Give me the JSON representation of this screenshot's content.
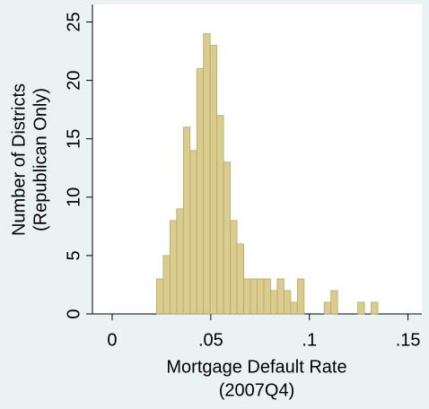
{
  "chart_data": {
    "type": "histogram",
    "bins": [
      0.0225,
      0.0259,
      0.0293,
      0.0327,
      0.0361,
      0.0395,
      0.0429,
      0.0463,
      0.0497,
      0.0531,
      0.0565,
      0.0599,
      0.0633,
      0.0667,
      0.0701,
      0.0735,
      0.0769,
      0.0803,
      0.0837,
      0.0871,
      0.0905,
      0.0939,
      0.0973,
      0.1007,
      0.1041,
      0.1075,
      0.1109,
      0.1143,
      0.1177,
      0.1211,
      0.1245,
      0.1279,
      0.1313,
      0.1347
    ],
    "values": [
      3,
      5,
      8,
      9,
      16,
      14,
      21,
      24,
      23,
      17,
      13,
      8,
      6,
      3,
      3,
      3,
      3,
      2,
      3,
      2,
      1,
      3,
      0,
      0,
      0,
      1,
      2,
      0,
      0,
      0,
      1,
      0,
      1
    ],
    "color": "#d9cc8e",
    "xlabel": [
      "Mortgage Default Rate",
      "(2007Q4)"
    ],
    "ylabel": [
      "Number of Districts",
      "(Republican Only)"
    ],
    "xlim": [
      -0.01,
      0.157
    ],
    "xticks": [
      0,
      {
        "value": 0.05,
        "label": ".05"
      },
      {
        "value": 0.1,
        "label": ".1"
      },
      {
        "value": 0.15,
        "label": ".15"
      }
    ],
    "ylim": [
      0,
      26.5
    ],
    "yticks": [
      0,
      5,
      10,
      15,
      20,
      25
    ],
    "grid": false
  }
}
